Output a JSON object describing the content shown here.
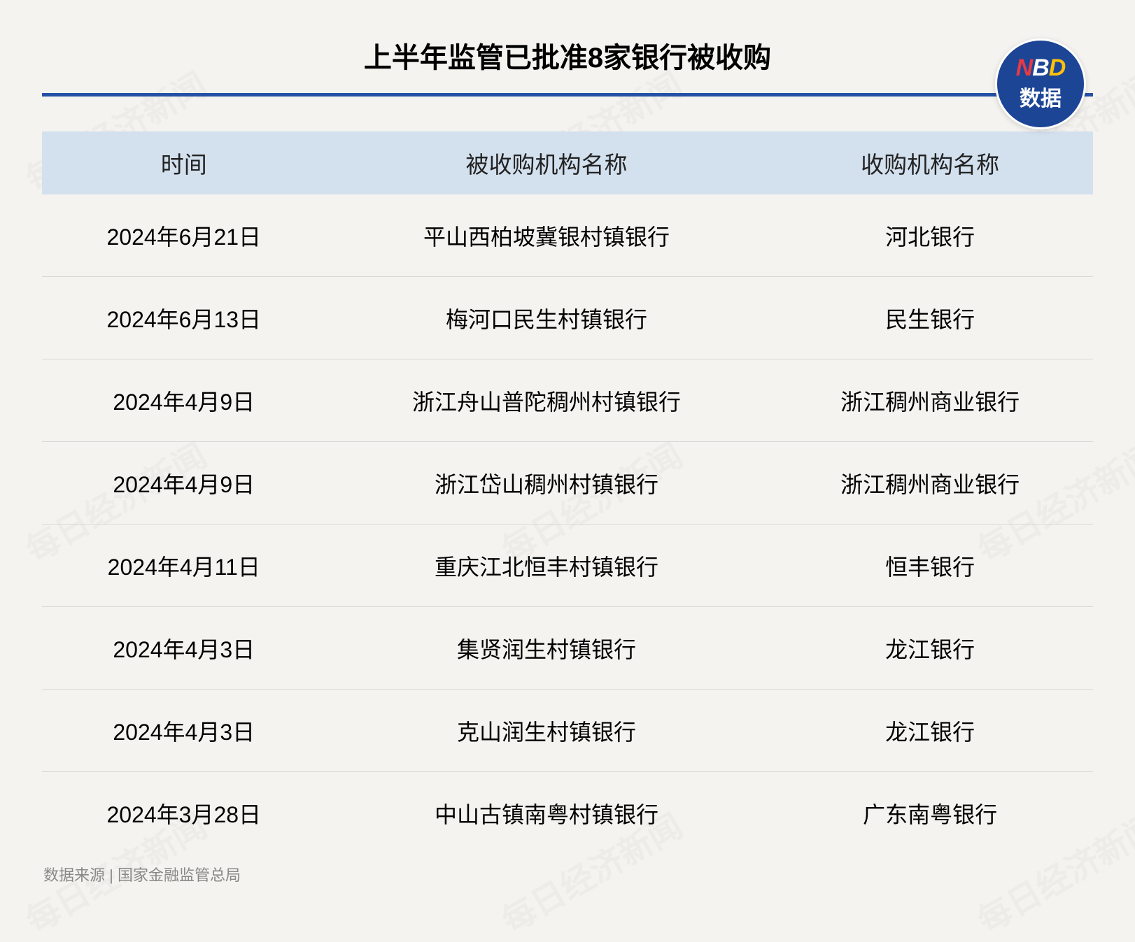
{
  "title": "上半年监管已批准8家银行被收购",
  "logo": {
    "text_n": "N",
    "text_b": "B",
    "text_d": "D",
    "sub": "数据",
    "bg_color": "#1c4596",
    "color_n": "#e63946",
    "color_b": "#ffffff",
    "color_d": "#ffc107"
  },
  "watermark_text": "每日经济新闻",
  "table": {
    "columns": [
      "时间",
      "被收购机构名称",
      "收购机构名称"
    ],
    "header_bg": "#d3e0ee",
    "border_color": "#d8d8d8",
    "font_size": 32,
    "header_font_size": 33,
    "rows": [
      [
        "2024年6月21日",
        "平山西柏坡冀银村镇银行",
        "河北银行"
      ],
      [
        "2024年6月13日",
        "梅河口民生村镇银行",
        "民生银行"
      ],
      [
        "2024年4月9日",
        "浙江舟山普陀稠州村镇银行",
        "浙江稠州商业银行"
      ],
      [
        "2024年4月9日",
        "浙江岱山稠州村镇银行",
        "浙江稠州商业银行"
      ],
      [
        "2024年4月11日",
        "重庆江北恒丰村镇银行",
        "恒丰银行"
      ],
      [
        "2024年4月3日",
        "集贤润生村镇银行",
        "龙江银行"
      ],
      [
        "2024年4月3日",
        "克山润生村镇银行",
        "龙江银行"
      ],
      [
        "2024年3月28日",
        "中山古镇南粤村镇银行",
        "广东南粤银行"
      ]
    ]
  },
  "source": "数据来源 | 国家金融监管总局",
  "styling": {
    "background_color": "#f5f3ef",
    "title_underline_color": "#2451a3",
    "title_font_size": 40,
    "source_font_size": 22,
    "source_color": "#888888"
  }
}
